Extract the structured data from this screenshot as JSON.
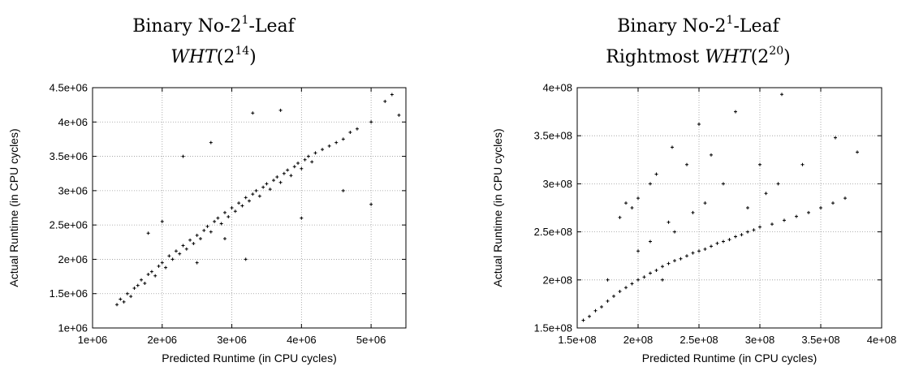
{
  "chart_data": [
    {
      "type": "scatter",
      "title": {
        "line1_pre": "Binary No-2",
        "line1_sup": "1",
        "line1_post": "-Leaf",
        "line2_pre": "",
        "line2_it": "WHT",
        "line2_mid": "(2",
        "line2_sup": "14",
        "line2_post": ")"
      },
      "xlabel": "Predicted Runtime (in CPU cycles)",
      "ylabel": "Actual Runtime (in CPU cycles)",
      "xlim": [
        1000000,
        5500000
      ],
      "ylim": [
        1000000,
        4500000
      ],
      "xticks": [
        1000000,
        2000000,
        3000000,
        4000000,
        5000000
      ],
      "xtick_labels": [
        "1e+06",
        "2e+06",
        "3e+06",
        "4e+06",
        "5e+06"
      ],
      "yticks": [
        1000000,
        1500000,
        2000000,
        2500000,
        3000000,
        3500000,
        4000000,
        4500000
      ],
      "ytick_labels": [
        "1e+06",
        "1.5e+06",
        "2e+06",
        "2.5e+06",
        "3e+06",
        "3.5e+06",
        "4e+06",
        "4.5e+06"
      ],
      "grid": true,
      "marker": "+",
      "color": "#000000",
      "series": [
        {
          "points": [
            [
              1350000,
              1340000
            ],
            [
              1400000,
              1420000
            ],
            [
              1450000,
              1380000
            ],
            [
              1500000,
              1500000
            ],
            [
              1550000,
              1460000
            ],
            [
              1600000,
              1580000
            ],
            [
              1650000,
              1620000
            ],
            [
              1700000,
              1700000
            ],
            [
              1750000,
              1650000
            ],
            [
              1800000,
              1780000
            ],
            [
              1850000,
              1820000
            ],
            [
              1900000,
              1760000
            ],
            [
              1950000,
              1900000
            ],
            [
              2000000,
              1950000
            ],
            [
              2050000,
              1880000
            ],
            [
              2100000,
              2050000
            ],
            [
              2150000,
              2000000
            ],
            [
              2200000,
              2120000
            ],
            [
              2250000,
              2080000
            ],
            [
              2300000,
              2200000
            ],
            [
              2350000,
              2150000
            ],
            [
              2400000,
              2280000
            ],
            [
              2450000,
              2230000
            ],
            [
              2500000,
              2350000
            ],
            [
              2550000,
              2300000
            ],
            [
              2600000,
              2420000
            ],
            [
              2650000,
              2480000
            ],
            [
              2700000,
              2400000
            ],
            [
              2750000,
              2550000
            ],
            [
              2800000,
              2600000
            ],
            [
              2850000,
              2520000
            ],
            [
              2900000,
              2680000
            ],
            [
              2950000,
              2620000
            ],
            [
              3000000,
              2750000
            ],
            [
              3050000,
              2700000
            ],
            [
              3100000,
              2820000
            ],
            [
              3150000,
              2780000
            ],
            [
              3200000,
              2900000
            ],
            [
              3250000,
              2850000
            ],
            [
              3300000,
              2950000
            ],
            [
              3350000,
              3000000
            ],
            [
              3400000,
              2920000
            ],
            [
              3450000,
              3050000
            ],
            [
              3500000,
              3100000
            ],
            [
              3550000,
              3020000
            ],
            [
              3600000,
              3150000
            ],
            [
              3650000,
              3200000
            ],
            [
              3700000,
              3120000
            ],
            [
              3750000,
              3250000
            ],
            [
              3800000,
              3300000
            ],
            [
              3850000,
              3220000
            ],
            [
              3900000,
              3350000
            ],
            [
              3950000,
              3400000
            ],
            [
              4000000,
              3320000
            ],
            [
              4050000,
              3450000
            ],
            [
              4100000,
              3500000
            ],
            [
              4150000,
              3420000
            ],
            [
              4200000,
              3550000
            ],
            [
              4300000,
              3600000
            ],
            [
              4400000,
              3650000
            ],
            [
              4500000,
              3700000
            ],
            [
              4600000,
              3750000
            ],
            [
              4700000,
              3850000
            ],
            [
              4800000,
              3900000
            ],
            [
              5000000,
              4000000
            ],
            [
              5200000,
              4300000
            ],
            [
              5300000,
              4400000
            ],
            [
              5400000,
              4100000
            ],
            [
              3300000,
              4130000
            ],
            [
              3700000,
              4170000
            ],
            [
              2700000,
              3700000
            ],
            [
              2300000,
              3500000
            ],
            [
              1800000,
              2380000
            ],
            [
              2000000,
              2550000
            ],
            [
              3200000,
              2000000
            ],
            [
              4000000,
              2600000
            ],
            [
              4600000,
              3000000
            ],
            [
              5000000,
              2800000
            ],
            [
              2500000,
              1950000
            ],
            [
              2900000,
              2300000
            ]
          ]
        }
      ]
    },
    {
      "type": "scatter",
      "title": {
        "line1_pre": "Binary No-2",
        "line1_sup": "1",
        "line1_post": "-Leaf",
        "line2_pre": "Rightmost ",
        "line2_it": "WHT",
        "line2_mid": "(2",
        "line2_sup": "20",
        "line2_post": ")"
      },
      "xlabel": "Predicted Runtime (in CPU cycles)",
      "ylabel": "Actual Runtime (in CPU cycles)",
      "xlim": [
        150000000,
        400000000
      ],
      "ylim": [
        150000000,
        400000000
      ],
      "xticks": [
        150000000,
        200000000,
        250000000,
        300000000,
        350000000,
        400000000
      ],
      "xtick_labels": [
        "1.5e+08",
        "2e+08",
        "2.5e+08",
        "3e+08",
        "3.5e+08",
        "4e+08"
      ],
      "yticks": [
        150000000,
        200000000,
        250000000,
        300000000,
        350000000,
        400000000
      ],
      "ytick_labels": [
        "1.5e+08",
        "2e+08",
        "2.5e+08",
        "3e+08",
        "3.5e+08",
        "4e+08"
      ],
      "grid": true,
      "marker": "+",
      "color": "#000000",
      "series": [
        {
          "points": [
            [
              155000000,
              158000000
            ],
            [
              160000000,
              162000000
            ],
            [
              165000000,
              168000000
            ],
            [
              170000000,
              172000000
            ],
            [
              175000000,
              178000000
            ],
            [
              180000000,
              183000000
            ],
            [
              185000000,
              188000000
            ],
            [
              190000000,
              192000000
            ],
            [
              195000000,
              196000000
            ],
            [
              200000000,
              200000000
            ],
            [
              205000000,
              203000000
            ],
            [
              210000000,
              207000000
            ],
            [
              215000000,
              210000000
            ],
            [
              220000000,
              214000000
            ],
            [
              225000000,
              217000000
            ],
            [
              230000000,
              220000000
            ],
            [
              235000000,
              222000000
            ],
            [
              240000000,
              225000000
            ],
            [
              245000000,
              228000000
            ],
            [
              250000000,
              230000000
            ],
            [
              255000000,
              232000000
            ],
            [
              260000000,
              235000000
            ],
            [
              265000000,
              238000000
            ],
            [
              270000000,
              240000000
            ],
            [
              275000000,
              242000000
            ],
            [
              280000000,
              245000000
            ],
            [
              285000000,
              247000000
            ],
            [
              290000000,
              250000000
            ],
            [
              295000000,
              252000000
            ],
            [
              300000000,
              255000000
            ],
            [
              310000000,
              258000000
            ],
            [
              320000000,
              262000000
            ],
            [
              330000000,
              266000000
            ],
            [
              340000000,
              270000000
            ],
            [
              350000000,
              275000000
            ],
            [
              360000000,
              280000000
            ],
            [
              370000000,
              285000000
            ],
            [
              380000000,
              333000000
            ],
            [
              318000000,
              393000000
            ],
            [
              280000000,
              375000000
            ],
            [
              250000000,
              362000000
            ],
            [
              362000000,
              348000000
            ],
            [
              190000000,
              280000000
            ],
            [
              195000000,
              275000000
            ],
            [
              200000000,
              285000000
            ],
            [
              185000000,
              265000000
            ],
            [
              210000000,
              300000000
            ],
            [
              215000000,
              310000000
            ],
            [
              240000000,
              320000000
            ],
            [
              260000000,
              330000000
            ],
            [
              300000000,
              320000000
            ],
            [
              335000000,
              320000000
            ],
            [
              228000000,
              338000000
            ],
            [
              270000000,
              300000000
            ],
            [
              305000000,
              290000000
            ],
            [
              245000000,
              270000000
            ],
            [
              225000000,
              260000000
            ],
            [
              255000000,
              280000000
            ],
            [
              290000000,
              275000000
            ],
            [
              315000000,
              300000000
            ],
            [
              200000000,
              230000000
            ],
            [
              230000000,
              250000000
            ],
            [
              210000000,
              240000000
            ],
            [
              175000000,
              200000000
            ],
            [
              220000000,
              200000000
            ]
          ]
        }
      ]
    }
  ]
}
